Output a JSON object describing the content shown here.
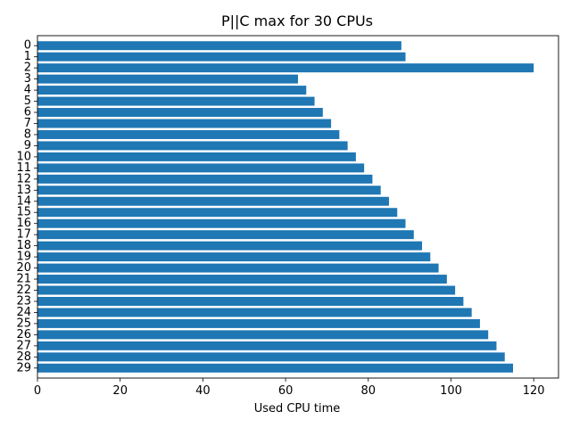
{
  "chart_data": {
    "type": "bar",
    "orientation": "horizontal",
    "title": "P||C max for 30 CPUs",
    "xlabel": "Used CPU time",
    "ylabel": "",
    "xlim": [
      0,
      126
    ],
    "xticks": [
      0,
      20,
      40,
      60,
      80,
      100,
      120
    ],
    "categories": [
      "0",
      "1",
      "2",
      "3",
      "4",
      "5",
      "6",
      "7",
      "8",
      "9",
      "10",
      "11",
      "12",
      "13",
      "14",
      "15",
      "16",
      "17",
      "18",
      "19",
      "20",
      "21",
      "22",
      "23",
      "24",
      "25",
      "26",
      "27",
      "28",
      "29"
    ],
    "values": [
      88,
      89,
      120,
      63,
      65,
      67,
      69,
      71,
      73,
      75,
      77,
      79,
      81,
      83,
      85,
      87,
      89,
      91,
      93,
      95,
      97,
      99,
      101,
      103,
      105,
      107,
      109,
      111,
      113,
      115
    ],
    "bar_color": "#1f77b4",
    "grid": false,
    "y_inverted": true
  }
}
